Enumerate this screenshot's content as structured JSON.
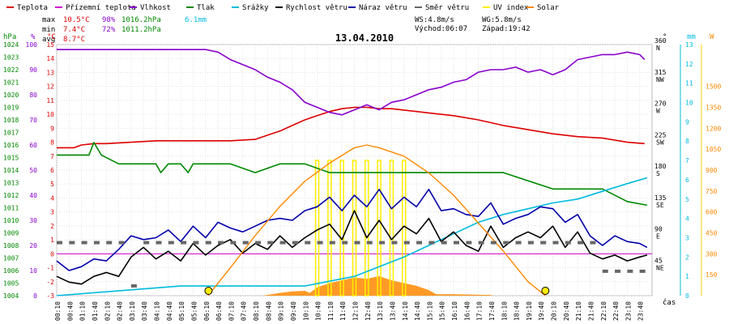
{
  "chart_data": {
    "type": "line",
    "title": "13.04.2010",
    "xlabel": "čas",
    "legend": [
      {
        "name": "Teplota",
        "color": "#dd0000"
      },
      {
        "name": "Přízemní teplota",
        "color": "#cc00cc"
      },
      {
        "name": "Vlhkost",
        "color": "#8800cc"
      },
      {
        "name": "Tlak",
        "color": "#008800"
      },
      {
        "name": "Srážky",
        "color": "#00bbdd"
      },
      {
        "name": "Rychlost větru",
        "color": "#000000"
      },
      {
        "name": "Náraz větru",
        "color": "#0000aa"
      },
      {
        "name": "Směr větru",
        "color": "#666666"
      },
      {
        "name": "UV index",
        "color": "#ffee00"
      },
      {
        "name": "Solar",
        "color": "#ff8800"
      }
    ],
    "stats": {
      "max_label": "max",
      "max_temp": "10.5°C",
      "max_hum": "98%",
      "max_press": "1016.2hPa",
      "max_rain": "6.1mm",
      "min_label": "min",
      "min_temp": "7.4°C",
      "min_hum": "72%",
      "min_press": "1011.2hPa",
      "avg_label": "avg",
      "avg_temp": "8.7°C"
    },
    "wind_info": {
      "ws": "WS:4.8m/s",
      "wg": "WG:5.8m/s",
      "sunrise": "Východ:06:07",
      "sunset": "Západ:19:42"
    },
    "axis_units": {
      "hpa": "hPa",
      "percent": "%",
      "celsius": "°C",
      "direction": "°",
      "mm": "mm",
      "wm2": "W"
    },
    "axes": {
      "pressure": {
        "range": [
          1004,
          1024
        ],
        "ticks": [
          1004,
          1005,
          1006,
          1007,
          1008,
          1009,
          1010,
          1011,
          1012,
          1013,
          1014,
          1015,
          1016,
          1017,
          1018,
          1019,
          1020,
          1021,
          1022,
          1023,
          1024
        ]
      },
      "humidity": {
        "range": [
          0,
          100
        ],
        "ticks": [
          0,
          10,
          20,
          30,
          40,
          50,
          60,
          70,
          80,
          90,
          100
        ]
      },
      "temperature": {
        "range": [
          -3,
          15
        ],
        "ticks": [
          -3,
          -2,
          -1,
          0,
          1,
          2,
          3,
          4,
          5,
          6,
          7,
          8,
          9,
          10,
          11,
          12,
          13,
          14,
          15
        ]
      },
      "direction": {
        "range": [
          0,
          360
        ],
        "ticks": [
          {
            "v": 45,
            "d": "NE"
          },
          {
            "v": 90,
            "d": "E"
          },
          {
            "v": 135,
            "d": "SE"
          },
          {
            "v": 180,
            "d": "S"
          },
          {
            "v": 225,
            "d": "SW"
          },
          {
            "v": 270,
            "d": "W"
          },
          {
            "v": 315,
            "d": "NW"
          },
          {
            "v": 360,
            "d": "N"
          }
        ]
      },
      "wind_ms": {
        "range": [
          0,
          13
        ],
        "ticks": [
          0,
          1,
          2,
          3,
          4,
          5,
          6,
          7,
          8,
          9,
          10,
          11,
          12,
          13
        ]
      },
      "solar": {
        "range": [
          0,
          1800
        ],
        "ticks": [
          150,
          300,
          450,
          600,
          750,
          900,
          1050,
          1200,
          1350,
          1500
        ]
      },
      "time": {
        "range_hours": [
          0,
          24
        ],
        "ticks": [
          "00:10",
          "00:40",
          "01:10",
          "01:40",
          "02:10",
          "02:40",
          "03:10",
          "03:40",
          "04:10",
          "04:40",
          "05:10",
          "05:40",
          "06:10",
          "06:40",
          "07:10",
          "07:40",
          "08:10",
          "08:40",
          "09:10",
          "09:40",
          "10:10",
          "10:40",
          "11:10",
          "11:40",
          "12:10",
          "12:40",
          "13:10",
          "13:40",
          "14:10",
          "14:40",
          "15:10",
          "15:40",
          "16:10",
          "16:40",
          "17:10",
          "17:40",
          "18:10",
          "18:40",
          "19:10",
          "19:40",
          "20:10",
          "20:40",
          "21:10",
          "21:40",
          "22:10",
          "22:40",
          "23:10",
          "23:40"
        ]
      }
    },
    "series": [
      {
        "name": "Teplota",
        "axis": "temperature",
        "color": "#dd0000",
        "x": [
          0,
          0.7,
          1,
          1.5,
          2,
          3,
          4,
          5,
          6,
          7,
          8,
          8.5,
          9,
          9.5,
          10,
          10.5,
          11,
          11.5,
          12,
          12.5,
          13,
          13.5,
          14,
          15,
          16,
          17,
          18,
          19,
          20,
          21,
          22,
          23,
          23.7
        ],
        "y": [
          7.6,
          7.6,
          7.8,
          7.9,
          7.9,
          8.0,
          8.1,
          8.1,
          8.1,
          8.1,
          8.2,
          8.5,
          8.8,
          9.2,
          9.6,
          9.9,
          10.2,
          10.4,
          10.5,
          10.5,
          10.4,
          10.4,
          10.3,
          10.1,
          9.9,
          9.6,
          9.2,
          8.9,
          8.6,
          8.4,
          8.3,
          8.0,
          7.9
        ]
      },
      {
        "name": "Vlhkost",
        "axis": "humidity",
        "color": "#8800cc",
        "x": [
          0,
          1,
          2,
          3,
          4,
          5,
          6,
          6.5,
          7,
          7.5,
          8,
          8.5,
          9,
          9.5,
          10,
          10.5,
          11,
          11.5,
          12,
          12.5,
          13,
          13.5,
          14,
          14.5,
          15,
          15.5,
          16,
          16.5,
          17,
          17.5,
          18,
          18.5,
          19,
          19.5,
          20,
          20.5,
          21,
          21.5,
          22,
          22.5,
          23,
          23.5,
          23.7
        ],
        "y": [
          98,
          98,
          98,
          98,
          98,
          98,
          98,
          97,
          94,
          92,
          90,
          87,
          85,
          82,
          77,
          75,
          73,
          72,
          74,
          76,
          74,
          77,
          78,
          80,
          82,
          83,
          85,
          86,
          89,
          90,
          90,
          91,
          89,
          90,
          88,
          90,
          94,
          95,
          96,
          96,
          97,
          96,
          94
        ]
      },
      {
        "name": "Tlak",
        "axis": "pressure",
        "color": "#008800",
        "x": [
          0,
          1.3,
          1.5,
          1.8,
          2.5,
          4,
          4.2,
          4.5,
          5,
          5.3,
          5.5,
          6,
          7,
          8,
          9,
          10,
          11,
          12,
          14,
          16,
          17,
          18,
          20,
          21,
          22,
          23,
          23.8
        ],
        "y": [
          1015.2,
          1015.2,
          1016.2,
          1015.2,
          1014.5,
          1014.5,
          1013.8,
          1014.5,
          1014.5,
          1013.8,
          1014.5,
          1014.5,
          1014.5,
          1013.8,
          1014.5,
          1014.5,
          1013.8,
          1013.8,
          1013.8,
          1013.8,
          1013.8,
          1013.8,
          1012.5,
          1012.5,
          1012.5,
          1011.5,
          1011.2
        ]
      },
      {
        "name": "Srážky",
        "axis": "wind_ms",
        "color": "#00bbdd",
        "x": [
          0,
          3,
          5,
          10,
          12,
          13,
          14,
          15,
          16,
          17,
          18,
          19,
          20,
          21,
          22,
          23,
          23.8
        ],
        "y": [
          0,
          0.3,
          0.5,
          0.5,
          1.0,
          1.5,
          2.0,
          2.6,
          3.2,
          3.8,
          4.2,
          4.5,
          4.8,
          5.0,
          5.4,
          5.8,
          6.1
        ]
      },
      {
        "name": "Rychlost větru",
        "axis": "wind_ms",
        "color": "#000000",
        "x": [
          0,
          0.5,
          1,
          1.5,
          2,
          2.5,
          3,
          3.5,
          4,
          4.5,
          5,
          5.5,
          6,
          6.5,
          7,
          7.5,
          8,
          8.5,
          9,
          9.5,
          10,
          10.5,
          11,
          11.5,
          12,
          12.5,
          13,
          13.5,
          14,
          14.5,
          15,
          15.5,
          16,
          16.5,
          17,
          17.5,
          18,
          18.5,
          19,
          19.5,
          20,
          20.5,
          21,
          21.5,
          22,
          22.5,
          23,
          23.5,
          23.8
        ],
        "y": [
          1.0,
          0.7,
          0.6,
          1.0,
          1.2,
          1.0,
          2.0,
          2.5,
          1.9,
          2.3,
          1.8,
          2.7,
          2.1,
          2.6,
          2.9,
          2.2,
          2.7,
          2.4,
          3.1,
          2.5,
          3.0,
          3.4,
          3.7,
          2.9,
          4.4,
          3.0,
          3.9,
          2.9,
          3.6,
          3.2,
          4.0,
          2.8,
          3.3,
          2.6,
          2.3,
          3.6,
          2.5,
          3.0,
          3.3,
          3.0,
          3.6,
          2.5,
          3.3,
          2.2,
          1.9,
          2.1,
          1.8,
          2.0,
          2.1
        ]
      },
      {
        "name": "Náraz větru",
        "axis": "wind_ms",
        "color": "#0000aa",
        "x": [
          0,
          0.5,
          1,
          1.5,
          2,
          2.5,
          3,
          3.5,
          4,
          4.5,
          5,
          5.5,
          6,
          6.5,
          7,
          7.5,
          8,
          8.5,
          9,
          9.5,
          10,
          10.5,
          11,
          11.5,
          12,
          12.5,
          13,
          13.5,
          14,
          14.5,
          15,
          15.5,
          16,
          16.5,
          17,
          17.5,
          18,
          18.5,
          19,
          19.5,
          20,
          20.5,
          21,
          21.5,
          22,
          22.5,
          23,
          23.5,
          23.8
        ],
        "y": [
          1.8,
          1.3,
          1.5,
          1.9,
          1.8,
          2.4,
          3.1,
          2.9,
          3.0,
          3.4,
          2.8,
          3.6,
          3.0,
          3.8,
          3.5,
          3.3,
          3.6,
          3.9,
          4.0,
          3.9,
          4.4,
          4.6,
          5.1,
          4.4,
          5.2,
          4.6,
          5.5,
          4.5,
          5.1,
          4.6,
          5.5,
          4.4,
          4.5,
          4.2,
          4.1,
          4.8,
          3.7,
          4.0,
          4.2,
          4.6,
          4.5,
          3.8,
          4.2,
          3.1,
          2.6,
          3.1,
          2.8,
          2.7,
          2.5
        ]
      },
      {
        "name": "Solar",
        "axis": "solar",
        "color": "#ff8800",
        "x": [
          6.1,
          7,
          8,
          9,
          10,
          11,
          12,
          12.5,
          13,
          14,
          15,
          16,
          17,
          18,
          19,
          19.7
        ],
        "y": [
          0,
          200,
          430,
          640,
          820,
          950,
          1060,
          1080,
          1060,
          1000,
          880,
          720,
          520,
          320,
          100,
          0
        ]
      }
    ],
    "direction_points": {
      "axis": "direction",
      "color": "#666666",
      "x": [
        0,
        0.5,
        1,
        1.5,
        2,
        2.5,
        3,
        3.5,
        4,
        4.5,
        5,
        5.5,
        6,
        6.5,
        7,
        7.5,
        8,
        8.5,
        9,
        9.5,
        10,
        10.5,
        11,
        11.5,
        12,
        12.5,
        13,
        13.5,
        14,
        14.5,
        15,
        15.5,
        16,
        16.5,
        17,
        17.5,
        18,
        18.5,
        19,
        19.5,
        20,
        20.5,
        21,
        21.5,
        22,
        22.5,
        23,
        23.5
      ],
      "y": [
        76,
        76,
        76,
        76,
        76,
        76,
        14,
        76,
        76,
        76,
        76,
        76,
        76,
        76,
        76,
        76,
        76,
        76,
        76,
        76,
        76,
        76,
        76,
        76,
        76,
        76,
        76,
        76,
        76,
        76,
        76,
        76,
        76,
        76,
        76,
        76,
        76,
        76,
        76,
        76,
        76,
        76,
        76,
        76,
        35,
        35,
        35,
        35
      ]
    },
    "sun_markers": {
      "sunrise_h": 6.12,
      "sunset_h": 19.7
    },
    "uv_index": {
      "x": [
        10.5,
        11,
        11.5,
        12,
        12.5,
        13,
        13.5,
        14
      ],
      "peak": 7
    }
  }
}
